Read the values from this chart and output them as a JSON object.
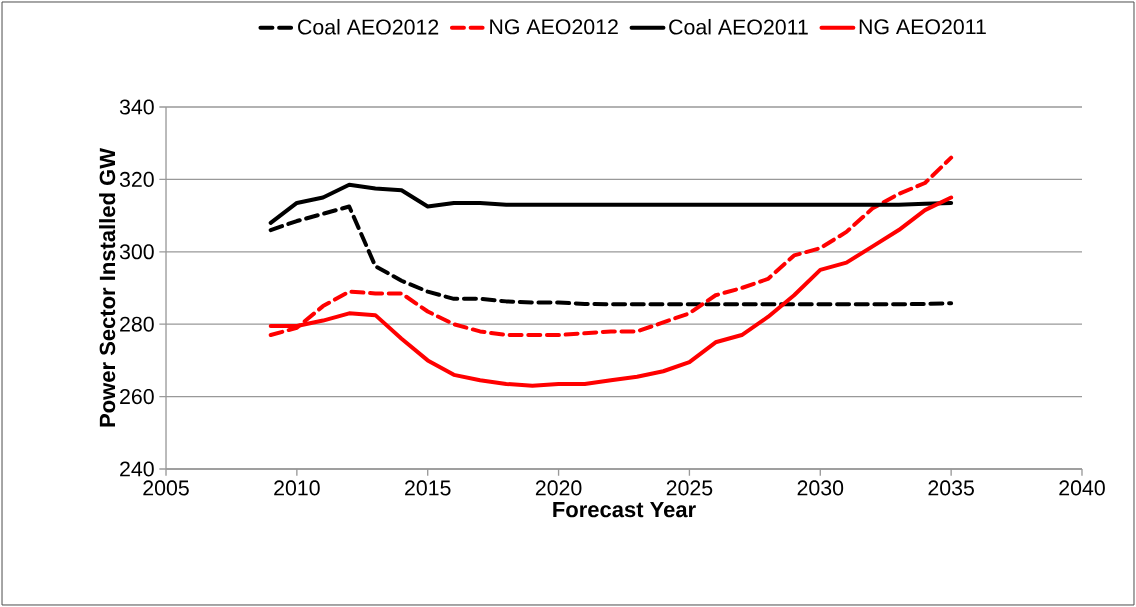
{
  "chart_data": {
    "type": "line",
    "xlabel": "Forecast Year",
    "ylabel": "Power Sector Installed GW",
    "x": [
      2009,
      2010,
      2011,
      2012,
      2013,
      2014,
      2015,
      2016,
      2017,
      2018,
      2019,
      2020,
      2021,
      2022,
      2023,
      2024,
      2025,
      2026,
      2027,
      2028,
      2029,
      2030,
      2031,
      2032,
      2033,
      2034,
      2035
    ],
    "series": [
      {
        "name": "Coal AEO2012",
        "color": "#000000",
        "line_style": "dashed",
        "values": [
          306,
          308.5,
          310.5,
          312.5,
          296,
          292,
          289,
          287,
          287,
          286.3,
          286,
          286,
          285.6,
          285.5,
          285.5,
          285.5,
          285.5,
          285.5,
          285.5,
          285.5,
          285.5,
          285.5,
          285.5,
          285.5,
          285.5,
          285.6,
          285.8
        ]
      },
      {
        "name": "NG AEO2012",
        "color": "#ff0000",
        "line_style": "dashed",
        "values": [
          277,
          279,
          285,
          289,
          288.5,
          288.5,
          283.5,
          280,
          278,
          277,
          277,
          277,
          277.5,
          278,
          278,
          280.5,
          283,
          288,
          290,
          292.5,
          299,
          301,
          305.5,
          312,
          316,
          319,
          326
        ]
      },
      {
        "name": "Coal AEO2011",
        "color": "#000000",
        "line_style": "solid",
        "values": [
          308,
          313.5,
          315,
          318.5,
          317.5,
          317,
          312.5,
          313.5,
          313.5,
          313,
          313,
          313,
          313,
          313,
          313,
          313,
          313,
          313,
          313,
          313,
          313,
          313,
          313,
          313,
          313,
          313.3,
          313.5
        ]
      },
      {
        "name": "NG AEO2011",
        "color": "#ff0000",
        "line_style": "solid",
        "values": [
          279.5,
          279.5,
          281,
          283,
          282.5,
          276,
          270,
          266,
          264.5,
          263.5,
          263,
          263.5,
          263.5,
          264.5,
          265.5,
          267,
          269.5,
          275,
          277,
          282,
          288,
          295,
          297,
          301.5,
          306,
          311.5,
          315
        ]
      }
    ],
    "xlim": [
      2005,
      2040
    ],
    "xticks": [
      2005,
      2010,
      2015,
      2020,
      2025,
      2030,
      2035,
      2040
    ],
    "ylim": [
      240,
      340
    ],
    "yticks": [
      240,
      260,
      280,
      300,
      320,
      340
    ],
    "grid": "y",
    "legend": "top",
    "marker": "none"
  }
}
